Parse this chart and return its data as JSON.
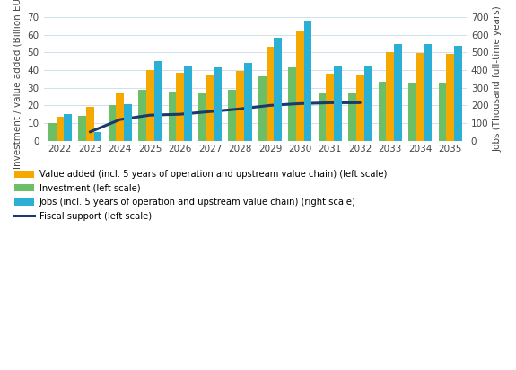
{
  "years": [
    2022,
    2023,
    2024,
    2025,
    2026,
    2027,
    2028,
    2029,
    2030,
    2031,
    2032,
    2033,
    2034,
    2035
  ],
  "value_added": [
    13.5,
    19.0,
    27.0,
    40.0,
    38.5,
    37.5,
    39.5,
    53.0,
    62.0,
    38.0,
    37.5,
    50.0,
    49.5,
    49.0
  ],
  "investment": [
    10.0,
    14.0,
    20.0,
    29.0,
    28.0,
    27.5,
    29.0,
    36.5,
    41.5,
    27.0,
    27.0,
    33.5,
    33.0,
    33.0
  ],
  "jobs": [
    150,
    50,
    205,
    450,
    425,
    415,
    440,
    585,
    680,
    425,
    420,
    545,
    545,
    535
  ],
  "fiscal_support_x": [
    1,
    2,
    3,
    4,
    5,
    6,
    7,
    8,
    9,
    10
  ],
  "fiscal_support_y": [
    5.0,
    12.0,
    14.5,
    15.0,
    16.5,
    18.0,
    20.0,
    21.0,
    21.5,
    21.5
  ],
  "ylabel_left": "Investment / value added (Billion EUR)",
  "ylabel_right": "Jobs (Thousand full-time years)",
  "ylim_left": [
    0,
    70
  ],
  "ylim_right": [
    0,
    700
  ],
  "yticks_left": [
    0,
    10,
    20,
    30,
    40,
    50,
    60,
    70
  ],
  "yticks_right": [
    0,
    100,
    200,
    300,
    400,
    500,
    600,
    700
  ],
  "color_value_added": "#F5A800",
  "color_investment": "#6DBF67",
  "color_jobs": "#2BAFD4",
  "color_fiscal": "#1B3A6B",
  "legend_labels": [
    "Value added (incl. 5 years of operation and upstream value chain) (left scale)",
    "Investment (left scale)",
    "Jobs (incl. 5 years of operation and upstream value chain) (right scale)",
    "Fiscal support (left scale)"
  ],
  "bar_width": 0.26
}
